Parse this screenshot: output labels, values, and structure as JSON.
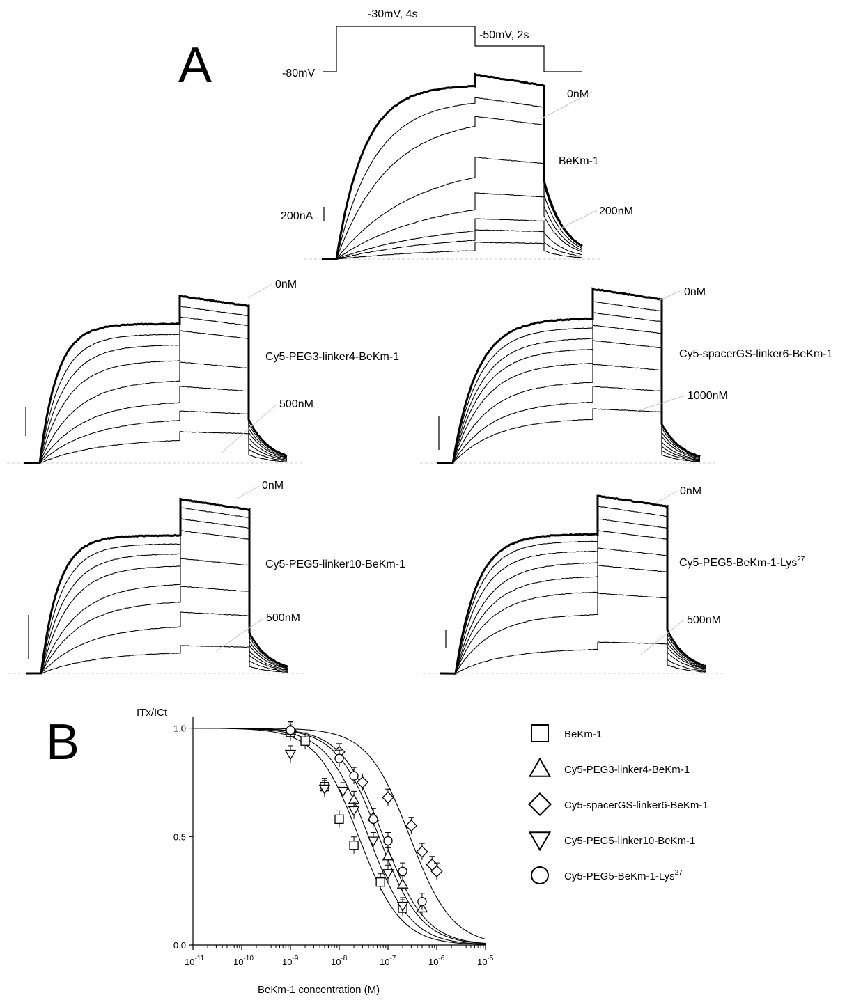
{
  "panels": {
    "a": "A",
    "b": "B"
  },
  "protocol": {
    "hold": "-80mV",
    "step1": "-30mV, 4s",
    "step2": "-50mV, 2s"
  },
  "scale_bar": "200nA",
  "traces": [
    {
      "id": "t0",
      "compound": "BeKm-1",
      "low": "0nM",
      "high": "200nM",
      "n_traces": 8
    },
    {
      "id": "t1",
      "compound": "Cy5-PEG3-linker4-BeKm-1",
      "low": "0nM",
      "high": "500nM",
      "n_traces": 8
    },
    {
      "id": "t2",
      "compound": "Cy5-spacerGS-linker6-BeKm-1",
      "low": "0nM",
      "high": "1000nM",
      "n_traces": 8
    },
    {
      "id": "t3",
      "compound": "Cy5-PEG5-linker10-BeKm-1",
      "low": "0nM",
      "high": "500nM",
      "n_traces": 8
    },
    {
      "id": "t4",
      "compound": "Cy5-PEG5-BeKm-1-Lys",
      "compound_sup": "27",
      "low": "0nM",
      "high": "500nM",
      "n_traces": 8
    }
  ],
  "chart_data": {
    "type": "scatter",
    "ylabel": "ITx/ICt",
    "xlabel": "BeKm-1 concentration (M)",
    "x_scale": "log",
    "xlim": [
      1e-11,
      1e-05
    ],
    "ylim": [
      0,
      1.05
    ],
    "x_ticks": [
      -11,
      -10,
      -9,
      -8,
      -7,
      -6,
      -5
    ],
    "y_ticks": [
      "0.0",
      "0.5",
      "1.0"
    ],
    "legend_position": "right",
    "series": [
      {
        "name": "BeKm-1",
        "marker": "square",
        "ic50_M": 2.5e-08,
        "points": [
          [
            1e-09,
            0.98
          ],
          [
            2e-09,
            0.94
          ],
          [
            5e-09,
            0.73
          ],
          [
            1e-08,
            0.58
          ],
          [
            2e-08,
            0.46
          ],
          [
            7e-08,
            0.29
          ],
          [
            2e-07,
            0.17
          ]
        ]
      },
      {
        "name": "Cy5-PEG3-linker4-BeKm-1",
        "marker": "triangle-up",
        "ic50_M": 6.5e-08,
        "points": [
          [
            1e-09,
            0.99
          ],
          [
            2e-08,
            0.67
          ],
          [
            5e-08,
            0.59
          ],
          [
            1e-07,
            0.41
          ],
          [
            2e-07,
            0.28
          ],
          [
            5e-07,
            0.17
          ]
        ]
      },
      {
        "name": "Cy5-spacerGS-linker6-BeKm-1",
        "marker": "diamond",
        "ic50_M": 2.8e-07,
        "points": [
          [
            1e-09,
            0.99
          ],
          [
            1e-08,
            0.89
          ],
          [
            3e-08,
            0.75
          ],
          [
            1e-07,
            0.68
          ],
          [
            3e-07,
            0.55
          ],
          [
            5e-07,
            0.43
          ],
          [
            8e-07,
            0.37
          ],
          [
            1e-06,
            0.34
          ]
        ]
      },
      {
        "name": "Cy5-PEG5-linker10-BeKm-1",
        "marker": "triangle-down",
        "ic50_M": 4e-08,
        "points": [
          [
            1e-09,
            0.88
          ],
          [
            5e-09,
            0.72
          ],
          [
            1.2e-08,
            0.71
          ],
          [
            2e-08,
            0.62
          ],
          [
            5e-08,
            0.48
          ],
          [
            1e-07,
            0.33
          ],
          [
            2e-07,
            0.18
          ]
        ]
      },
      {
        "name": "Cy5-PEG5-BeKm-1-Lys",
        "name_sup": "27",
        "marker": "circle",
        "ic50_M": 8e-08,
        "points": [
          [
            1e-09,
            0.99
          ],
          [
            1e-08,
            0.86
          ],
          [
            2e-08,
            0.78
          ],
          [
            5e-08,
            0.58
          ],
          [
            1e-07,
            0.48
          ],
          [
            2e-07,
            0.34
          ],
          [
            5e-07,
            0.2
          ]
        ]
      }
    ]
  }
}
